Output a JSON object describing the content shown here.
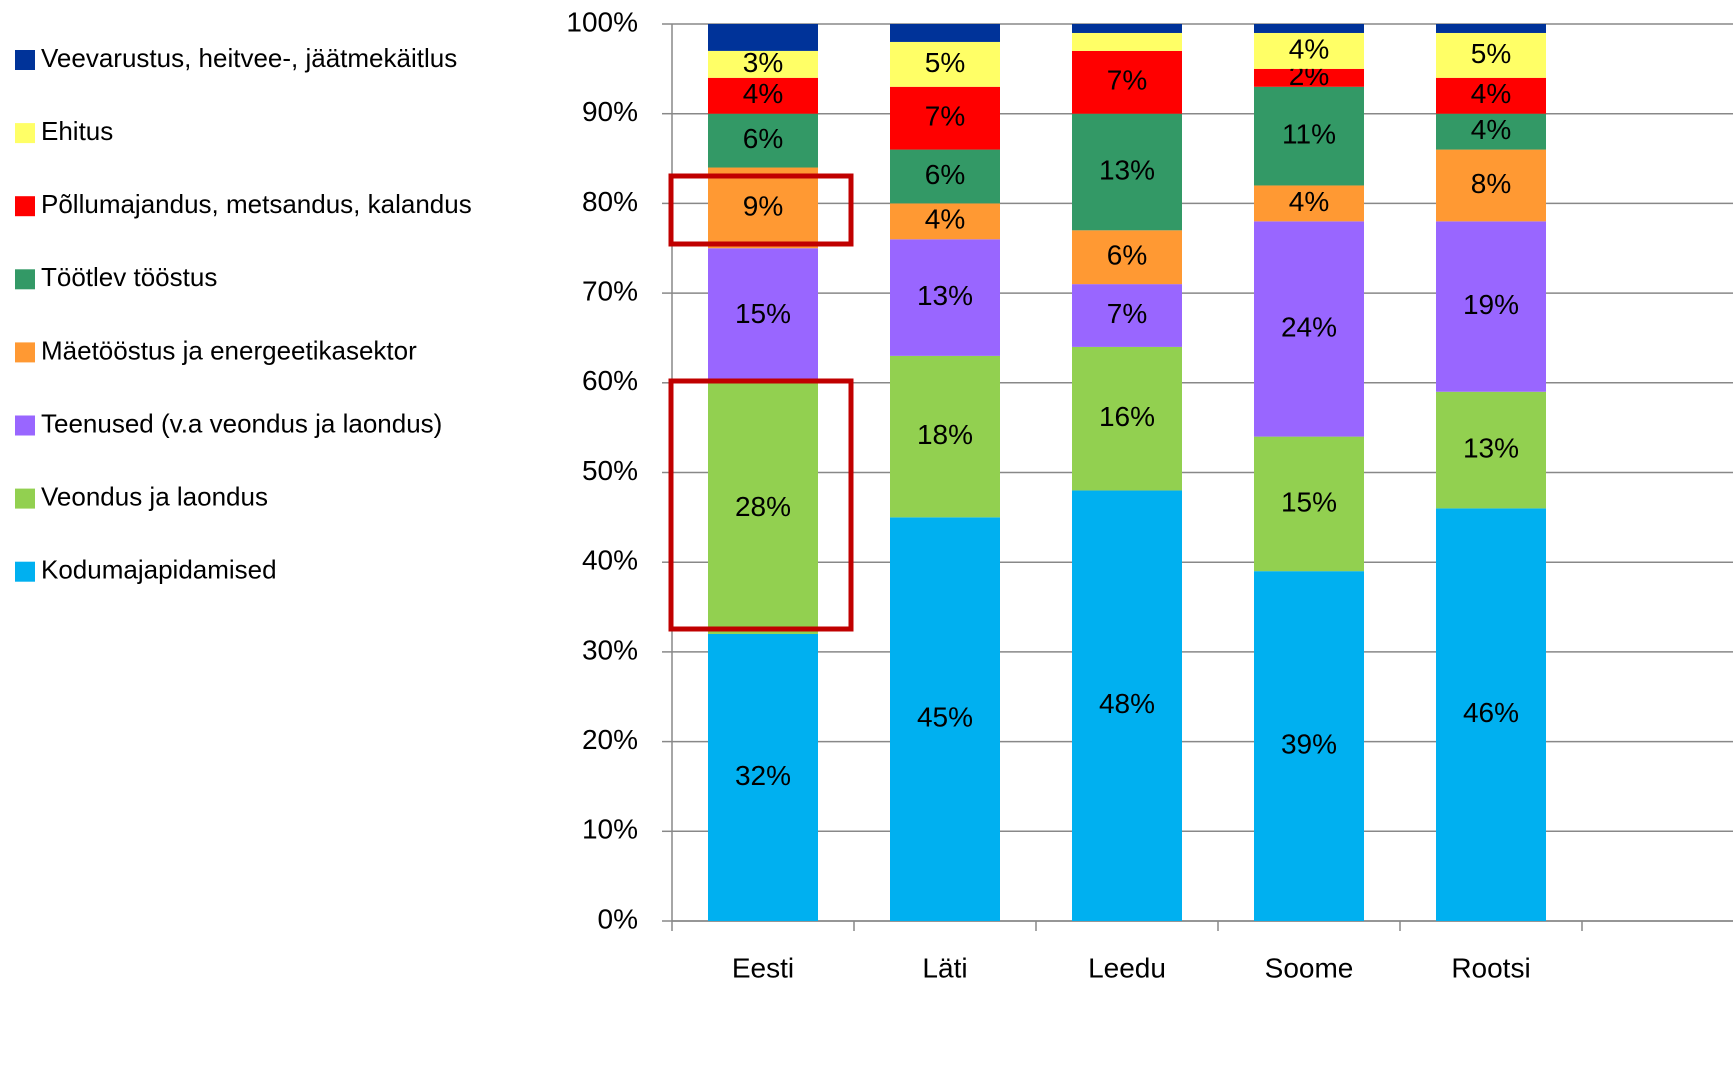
{
  "chart_data": {
    "type": "stacked_bar",
    "categories": [
      "Eesti",
      "Läti",
      "Leedu",
      "Soome",
      "Rootsi"
    ],
    "series": [
      {
        "name": "Kodumajapidamised",
        "color": "#00b0f0",
        "values": [
          32,
          45,
          48,
          39,
          46
        ],
        "value_labels": [
          "32%",
          "45%",
          "48%",
          "39%",
          "46%"
        ]
      },
      {
        "name": "Veondus ja laondus",
        "color": "#92d050",
        "values": [
          28,
          18,
          16,
          15,
          13
        ],
        "value_labels": [
          "28%",
          "18%",
          "16%",
          "15%",
          "13%"
        ]
      },
      {
        "name": "Teenused (v.a veondus ja laondus)",
        "color": "#9966ff",
        "values": [
          15,
          13,
          7,
          24,
          19
        ],
        "value_labels": [
          "15%",
          "13%",
          "7%",
          "24%",
          "19%"
        ]
      },
      {
        "name": "Mäetööstus ja energeetikasektor",
        "color": "#ff9933",
        "values": [
          9,
          4,
          6,
          4,
          8
        ],
        "value_labels": [
          "9%",
          "4%",
          "6%",
          "4%",
          "8%"
        ]
      },
      {
        "name": "Töötlev tööstus",
        "color": "#339966",
        "values": [
          6,
          6,
          13,
          11,
          4
        ],
        "value_labels": [
          "6%",
          "6%",
          "13%",
          "11%",
          "4%"
        ]
      },
      {
        "name": "Põllumajandus, metsandus, kalandus",
        "color": "#ff0000",
        "values": [
          4,
          7,
          7,
          2,
          4
        ],
        "value_labels": [
          "4%",
          "7%",
          "7%",
          "2%",
          "4%"
        ]
      },
      {
        "name": "Ehitus",
        "color": "#ffff66",
        "values": [
          3,
          5,
          2,
          4,
          5
        ],
        "value_labels": [
          "3%",
          "5%",
          null,
          "4%",
          "5%"
        ]
      },
      {
        "name": "Veevarustus, heitvee-, jäätmekäitlus",
        "color": "#003399",
        "values": [
          3,
          2,
          1,
          1,
          1
        ]
      }
    ],
    "ylim": [
      0,
      100
    ],
    "yticks": [
      {
        "value": 0,
        "label": "0%"
      },
      {
        "value": 10,
        "label": "10%"
      },
      {
        "value": 20,
        "label": "20%"
      },
      {
        "value": 30,
        "label": "30%"
      },
      {
        "value": 40,
        "label": "40%"
      },
      {
        "value": 50,
        "label": "50%"
      },
      {
        "value": 60,
        "label": "60%"
      },
      {
        "value": 70,
        "label": "70%"
      },
      {
        "value": 80,
        "label": "80%"
      },
      {
        "value": 90,
        "label": "90%"
      },
      {
        "value": 100,
        "label": "100%"
      }
    ],
    "grid": true,
    "legend": "left"
  }
}
